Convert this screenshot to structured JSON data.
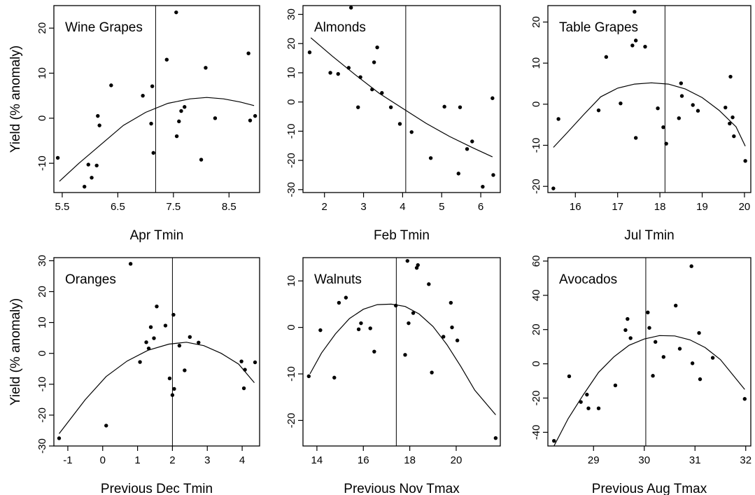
{
  "chart_data": [
    {
      "type": "scatter",
      "title": "Wine Grapes",
      "xlabel": "Apr Tmin",
      "ylabel": "Yield (% anomaly)",
      "xlim": [
        5.35,
        9.05
      ],
      "ylim": [
        -16.5,
        25
      ],
      "xticks": [
        5.5,
        6.5,
        7.5,
        8.5
      ],
      "yticks": [
        -10,
        0,
        10,
        20
      ],
      "vline": 7.18,
      "points": [
        [
          5.42,
          -8.8
        ],
        [
          5.9,
          -15.2
        ],
        [
          5.97,
          -10.3
        ],
        [
          6.03,
          -13.2
        ],
        [
          6.12,
          -10.5
        ],
        [
          6.14,
          0.5
        ],
        [
          6.17,
          -1.6
        ],
        [
          6.38,
          7.3
        ],
        [
          6.95,
          5
        ],
        [
          7.1,
          -1.2
        ],
        [
          7.12,
          7.1
        ],
        [
          7.14,
          -7.7
        ],
        [
          7.38,
          13
        ],
        [
          7.55,
          23.5
        ],
        [
          7.56,
          -4
        ],
        [
          7.6,
          -0.7
        ],
        [
          7.64,
          1.6
        ],
        [
          7.7,
          2.5
        ],
        [
          8,
          -9.2
        ],
        [
          8.08,
          11.2
        ],
        [
          8.25,
          0
        ],
        [
          8.85,
          14.4
        ],
        [
          8.88,
          -0.5
        ],
        [
          8.97,
          0.5
        ]
      ],
      "fit": [
        [
          5.45,
          -14
        ],
        [
          5.8,
          -10
        ],
        [
          6.2,
          -5.8
        ],
        [
          6.6,
          -1.6
        ],
        [
          7.0,
          1.3
        ],
        [
          7.4,
          3.3
        ],
        [
          7.8,
          4.3
        ],
        [
          8.1,
          4.6
        ],
        [
          8.4,
          4.3
        ],
        [
          8.7,
          3.6
        ],
        [
          8.95,
          2.8
        ]
      ]
    },
    {
      "type": "scatter",
      "title": "Almonds",
      "xlabel": "Feb Tmin",
      "ylabel": "",
      "xlim": [
        1.45,
        6.5
      ],
      "ylim": [
        -31,
        33
      ],
      "xticks": [
        2,
        3,
        4,
        5,
        6
      ],
      "yticks": [
        -30,
        -20,
        -10,
        0,
        10,
        20,
        30
      ],
      "vline": 4.08,
      "points": [
        [
          1.62,
          17
        ],
        [
          2.15,
          10
        ],
        [
          2.35,
          9.6
        ],
        [
          2.62,
          11.7
        ],
        [
          2.68,
          32.3
        ],
        [
          2.86,
          -1.8
        ],
        [
          2.92,
          8.5
        ],
        [
          3.22,
          4.3
        ],
        [
          3.27,
          13.6
        ],
        [
          3.35,
          18.7
        ],
        [
          3.47,
          3.1
        ],
        [
          3.7,
          -1.8
        ],
        [
          3.93,
          -7.5
        ],
        [
          4.23,
          -10.3
        ],
        [
          4.72,
          -19.2
        ],
        [
          5.07,
          -1.6
        ],
        [
          5.43,
          -24.5
        ],
        [
          5.47,
          -1.8
        ],
        [
          5.65,
          -16.1
        ],
        [
          5.78,
          -13.5
        ],
        [
          6.05,
          -29
        ],
        [
          6.3,
          1.3
        ],
        [
          6.32,
          -25
        ]
      ],
      "fit": [
        [
          1.65,
          22
        ],
        [
          2.2,
          15.7
        ],
        [
          2.8,
          9.2
        ],
        [
          3.4,
          3
        ],
        [
          4.0,
          -2.2
        ],
        [
          4.6,
          -7.3
        ],
        [
          5.2,
          -11.8
        ],
        [
          5.8,
          -15.7
        ],
        [
          6.3,
          -18.8
        ]
      ]
    },
    {
      "type": "scatter",
      "title": "Table Grapes",
      "xlabel": "Jul Tmin",
      "ylabel": "",
      "xlim": [
        15.35,
        20.15
      ],
      "ylim": [
        -21.5,
        24
      ],
      "xticks": [
        16,
        17,
        18,
        19,
        20
      ],
      "yticks": [
        -20,
        -10,
        0,
        10,
        20
      ],
      "vline": 18.12,
      "points": [
        [
          15.48,
          -20.5
        ],
        [
          15.6,
          -3.6
        ],
        [
          16.55,
          -1.5
        ],
        [
          16.73,
          11.5
        ],
        [
          17.07,
          0.2
        ],
        [
          17.35,
          14.3
        ],
        [
          17.4,
          22.5
        ],
        [
          17.43,
          15.5
        ],
        [
          17.43,
          -8.2
        ],
        [
          17.65,
          14
        ],
        [
          17.95,
          -1
        ],
        [
          18.08,
          -5.6
        ],
        [
          18.15,
          -9.6
        ],
        [
          18.45,
          -3.4
        ],
        [
          18.5,
          5.1
        ],
        [
          18.52,
          2
        ],
        [
          18.78,
          -0.2
        ],
        [
          18.9,
          -1.6
        ],
        [
          19.55,
          -0.8
        ],
        [
          19.65,
          -4.7
        ],
        [
          19.67,
          6.7
        ],
        [
          19.72,
          -3.2
        ],
        [
          19.75,
          -7.8
        ],
        [
          20.02,
          -13.8
        ]
      ],
      "fit": [
        [
          15.48,
          -10.5
        ],
        [
          15.8,
          -7
        ],
        [
          16.2,
          -2.5
        ],
        [
          16.6,
          1.8
        ],
        [
          17.0,
          3.9
        ],
        [
          17.4,
          4.9
        ],
        [
          17.8,
          5.2
        ],
        [
          18.2,
          4.9
        ],
        [
          18.6,
          3.7
        ],
        [
          19.0,
          1.6
        ],
        [
          19.4,
          -1.5
        ],
        [
          19.8,
          -5.5
        ],
        [
          20.02,
          -10.2
        ]
      ]
    },
    {
      "type": "scatter",
      "title": "Oranges",
      "xlabel": "Previous Dec Tmin",
      "ylabel": "Yield (% anomaly)",
      "xlim": [
        -1.4,
        4.5
      ],
      "ylim": [
        -30,
        31
      ],
      "xticks": [
        -1,
        0,
        1,
        2,
        3,
        4
      ],
      "yticks": [
        -30,
        -20,
        -10,
        0,
        10,
        20,
        30
      ],
      "vline": 2.0,
      "points": [
        [
          -1.25,
          -27.5
        ],
        [
          0.1,
          -23.4
        ],
        [
          0.8,
          29
        ],
        [
          1.07,
          -2.8
        ],
        [
          1.25,
          3.6
        ],
        [
          1.32,
          1.6
        ],
        [
          1.38,
          8.5
        ],
        [
          1.47,
          4.9
        ],
        [
          1.55,
          15.2
        ],
        [
          1.8,
          9
        ],
        [
          1.92,
          -8.1
        ],
        [
          2.0,
          -13.5
        ],
        [
          2.03,
          12.5
        ],
        [
          2.05,
          -11.5
        ],
        [
          2.2,
          2.5
        ],
        [
          2.35,
          -5.5
        ],
        [
          2.5,
          5.3
        ],
        [
          2.75,
          3.5
        ],
        [
          3.98,
          -2.6
        ],
        [
          4.05,
          -11.3
        ],
        [
          4.08,
          -5.3
        ],
        [
          4.37,
          -2.9
        ]
      ],
      "fit": [
        [
          -1.25,
          -26
        ],
        [
          -0.5,
          -15
        ],
        [
          0.1,
          -7.5
        ],
        [
          0.7,
          -2.5
        ],
        [
          1.3,
          1
        ],
        [
          1.9,
          3
        ],
        [
          2.4,
          3.6
        ],
        [
          2.9,
          2.5
        ],
        [
          3.4,
          0
        ],
        [
          3.9,
          -3.5
        ],
        [
          4.35,
          -9.5
        ]
      ]
    },
    {
      "type": "scatter",
      "title": "Walnuts",
      "xlabel": "Previous Nov Tmax",
      "ylabel": "",
      "xlim": [
        13.4,
        21.9
      ],
      "ylim": [
        -25.5,
        15
      ],
      "xticks": [
        14,
        16,
        18,
        20
      ],
      "yticks": [
        -20,
        -10,
        0,
        10
      ],
      "vline": 17.42,
      "points": [
        [
          13.65,
          -10.5
        ],
        [
          14.15,
          -0.6
        ],
        [
          14.75,
          -10.8
        ],
        [
          14.95,
          5.3
        ],
        [
          15.25,
          6.4
        ],
        [
          15.8,
          -0.4
        ],
        [
          15.9,
          0.9
        ],
        [
          16.3,
          -0.2
        ],
        [
          16.47,
          -5.2
        ],
        [
          17.4,
          4.7
        ],
        [
          17.8,
          -5.9
        ],
        [
          17.9,
          14.3
        ],
        [
          17.95,
          0.9
        ],
        [
          18.15,
          3.1
        ],
        [
          18.3,
          12.8
        ],
        [
          18.35,
          13.4
        ],
        [
          18.82,
          9.3
        ],
        [
          18.95,
          -9.7
        ],
        [
          19.45,
          -2
        ],
        [
          19.77,
          5.3
        ],
        [
          19.82,
          0
        ],
        [
          20.05,
          -2.8
        ],
        [
          21.7,
          -23.8
        ]
      ],
      "fit": [
        [
          13.7,
          -10
        ],
        [
          14.2,
          -5.5
        ],
        [
          14.8,
          -1.4
        ],
        [
          15.4,
          1.9
        ],
        [
          16.0,
          3.9
        ],
        [
          16.6,
          4.9
        ],
        [
          17.2,
          5.0
        ],
        [
          17.8,
          4.5
        ],
        [
          18.4,
          2.9
        ],
        [
          19.0,
          0.2
        ],
        [
          19.6,
          -3.7
        ],
        [
          20.2,
          -8.4
        ],
        [
          20.8,
          -13.5
        ],
        [
          21.7,
          -18.8
        ]
      ]
    },
    {
      "type": "scatter",
      "title": "Avocados",
      "xlabel": "Previous Aug Tmax",
      "ylabel": "",
      "xlim": [
        28.1,
        32.1
      ],
      "ylim": [
        -48,
        62
      ],
      "xticks": [
        29,
        30,
        31,
        32
      ],
      "yticks": [
        -40,
        -20,
        0,
        20,
        40,
        60
      ],
      "vline": 30.03,
      "points": [
        [
          28.22,
          -45
        ],
        [
          28.52,
          -7.3
        ],
        [
          28.75,
          -22.3
        ],
        [
          28.87,
          -18
        ],
        [
          28.9,
          -26
        ],
        [
          29.1,
          -26
        ],
        [
          29.43,
          -12.6
        ],
        [
          29.63,
          19.7
        ],
        [
          29.67,
          26.2
        ],
        [
          29.73,
          15
        ],
        [
          30.07,
          30
        ],
        [
          30.1,
          21
        ],
        [
          30.17,
          -7
        ],
        [
          30.22,
          12.8
        ],
        [
          30.38,
          4
        ],
        [
          30.62,
          34
        ],
        [
          30.7,
          8.8
        ],
        [
          30.93,
          57
        ],
        [
          30.95,
          0.3
        ],
        [
          31.08,
          18
        ],
        [
          31.1,
          -9
        ],
        [
          31.35,
          3.5
        ],
        [
          31.98,
          -20.5
        ]
      ],
      "fit": [
        [
          28.22,
          -48
        ],
        [
          28.5,
          -32
        ],
        [
          28.8,
          -18
        ],
        [
          29.1,
          -5
        ],
        [
          29.4,
          4
        ],
        [
          29.7,
          10.8
        ],
        [
          30.0,
          14.5
        ],
        [
          30.3,
          16.5
        ],
        [
          30.6,
          16.3
        ],
        [
          30.9,
          14
        ],
        [
          31.2,
          9.5
        ],
        [
          31.5,
          2.5
        ],
        [
          31.98,
          -15
        ]
      ]
    }
  ]
}
